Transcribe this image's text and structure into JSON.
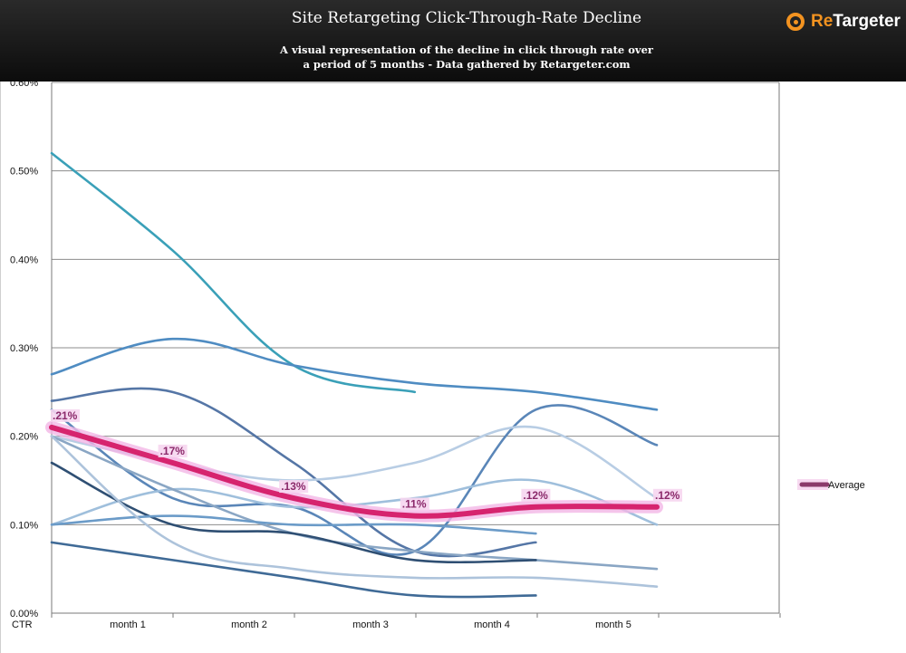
{
  "header": {
    "title": "Site Retargeting Click-Through-Rate Decline",
    "subtitle_line1": "A visual representation of the decline in click through rate over",
    "subtitle_line2": "a period of 5 months - Data gathered by Retargeter.com",
    "logo_prefix": "Re",
    "logo_suffix": "Targeter",
    "logo_icon": "retargeter-logo-icon"
  },
  "chart_data": {
    "type": "line",
    "title": "Site Retargeting Click-Through-Rate Decline",
    "subtitle": "A visual representation of the decline in click through rate over a period of 5 months - Data gathered by Retargeter.com",
    "xlabel": "CTR",
    "ylabel": "",
    "categories": [
      "month 1",
      "month 2",
      "month 3",
      "month 4",
      "month 5"
    ],
    "ylim": [
      0,
      0.6
    ],
    "yticks": [
      "0.00%",
      "0.10%",
      "0.20%",
      "0.30%",
      "0.40%",
      "0.50%",
      "0.60%"
    ],
    "grid": true,
    "legend": {
      "position": "right",
      "entries": [
        "Average"
      ]
    },
    "series": [
      {
        "name": "Average",
        "emphasis": true,
        "color": "#d6246e",
        "x": [
          0.5,
          1.5,
          2.5,
          3.5,
          4.5,
          5.5
        ],
        "values": [
          0.21,
          0.17,
          0.13,
          0.11,
          0.12,
          0.12
        ],
        "data_labels": [
          ".21%",
          ".17%",
          ".13%",
          ".11%",
          ".12%",
          ".12%"
        ]
      },
      {
        "color": "#3aa0b8",
        "x": [
          0.5,
          1.5,
          2.5,
          3.5
        ],
        "values": [
          0.52,
          0.41,
          0.28,
          0.25
        ]
      },
      {
        "color": "#4f8cc2",
        "x": [
          0.5,
          1.5,
          2.5,
          3.5,
          4.5,
          5.5
        ],
        "values": [
          0.27,
          0.31,
          0.28,
          0.26,
          0.25,
          0.23
        ]
      },
      {
        "color": "#5576a6",
        "x": [
          0.5,
          1.5,
          2.5,
          3.5,
          4.5
        ],
        "values": [
          0.24,
          0.25,
          0.17,
          0.07,
          0.08
        ]
      },
      {
        "color": "#5a86b8",
        "x": [
          0.5,
          1.5,
          2.5,
          3.5,
          4.5,
          5.5
        ],
        "values": [
          0.23,
          0.13,
          0.12,
          0.07,
          0.23,
          0.19
        ]
      },
      {
        "color": "#9fbfdc",
        "x": [
          0.5,
          1.5,
          2.5,
          3.5,
          4.5,
          5.5
        ],
        "values": [
          0.1,
          0.14,
          0.12,
          0.13,
          0.15,
          0.1
        ]
      },
      {
        "color": "#b8cde4",
        "x": [
          0.5,
          1.5,
          2.5,
          3.5,
          4.5,
          5.5
        ],
        "values": [
          0.2,
          0.17,
          0.15,
          0.17,
          0.21,
          0.13
        ]
      },
      {
        "color": "#8aa6c4",
        "x": [
          0.5,
          1.5,
          2.5,
          3.5,
          4.5,
          5.5
        ],
        "values": [
          0.2,
          0.14,
          0.09,
          0.07,
          0.06,
          0.05
        ]
      },
      {
        "color": "#2f4f73",
        "x": [
          0.5,
          1.5,
          2.5,
          3.5,
          4.5
        ],
        "values": [
          0.17,
          0.1,
          0.09,
          0.06,
          0.06
        ]
      },
      {
        "color": "#6b9bc8",
        "x": [
          0.5,
          1.5,
          2.5,
          3.5,
          4.5
        ],
        "values": [
          0.1,
          0.11,
          0.1,
          0.1,
          0.09
        ]
      },
      {
        "color": "#adc3db",
        "x": [
          0.5,
          1.5,
          2.5,
          3.5,
          4.5,
          5.5
        ],
        "values": [
          0.2,
          0.08,
          0.05,
          0.04,
          0.04,
          0.03
        ]
      },
      {
        "color": "#3f6a96",
        "x": [
          0.5,
          1.5,
          2.5,
          3.5,
          4.5
        ],
        "values": [
          0.08,
          0.06,
          0.04,
          0.02,
          0.02
        ]
      }
    ]
  }
}
